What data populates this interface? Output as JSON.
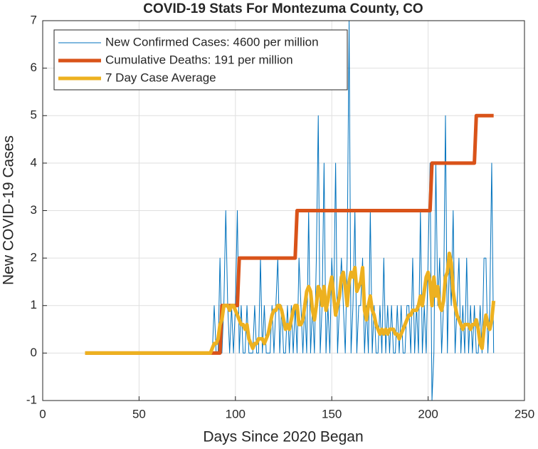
{
  "chart_data": {
    "type": "line",
    "title": "COVID-19 Stats For Montezuma County, CO",
    "xlabel": "Days Since 2020 Began",
    "ylabel": "New COVID-19 Cases",
    "xlim": [
      0,
      250
    ],
    "xticks": [
      0,
      50,
      100,
      150,
      200,
      250
    ],
    "ylim": [
      -1,
      7
    ],
    "yticks": [
      -1,
      0,
      1,
      2,
      3,
      4,
      5,
      6,
      7
    ],
    "grid": true,
    "legend": "upper-left",
    "x": [
      22,
      23,
      24,
      25,
      26,
      27,
      28,
      29,
      30,
      31,
      32,
      33,
      34,
      35,
      36,
      37,
      38,
      39,
      40,
      41,
      42,
      43,
      44,
      45,
      46,
      47,
      48,
      49,
      50,
      51,
      52,
      53,
      54,
      55,
      56,
      57,
      58,
      59,
      60,
      61,
      62,
      63,
      64,
      65,
      66,
      67,
      68,
      69,
      70,
      71,
      72,
      73,
      74,
      75,
      76,
      77,
      78,
      79,
      80,
      81,
      82,
      83,
      84,
      85,
      86,
      87,
      88,
      89,
      90,
      91,
      92,
      93,
      94,
      95,
      96,
      97,
      98,
      99,
      100,
      101,
      102,
      103,
      104,
      105,
      106,
      107,
      108,
      109,
      110,
      111,
      112,
      113,
      114,
      115,
      116,
      117,
      118,
      119,
      120,
      121,
      122,
      123,
      124,
      125,
      126,
      127,
      128,
      129,
      130,
      131,
      132,
      133,
      134,
      135,
      136,
      137,
      138,
      139,
      140,
      141,
      142,
      143,
      144,
      145,
      146,
      147,
      148,
      149,
      150,
      151,
      152,
      153,
      154,
      155,
      156,
      157,
      158,
      159,
      160,
      161,
      162,
      163,
      164,
      165,
      166,
      167,
      168,
      169,
      170,
      171,
      172,
      173,
      174,
      175,
      176,
      177,
      178,
      179,
      180,
      181,
      182,
      183,
      184,
      185,
      186,
      187,
      188,
      189,
      190,
      191,
      192,
      193,
      194,
      195,
      196,
      197,
      198,
      199,
      200,
      201,
      202,
      203,
      204,
      205,
      206,
      207,
      208,
      209,
      210,
      211,
      212,
      213,
      214,
      215,
      216,
      217,
      218,
      219,
      220,
      221,
      222,
      223,
      224,
      225,
      226,
      227,
      228,
      229,
      230,
      231,
      232,
      233,
      234
    ],
    "series": [
      {
        "name": "New Confirmed Cases: 4600 per million",
        "color": "#0072BD",
        "width": 1,
        "values": [
          0,
          0,
          0,
          0,
          0,
          0,
          0,
          0,
          0,
          0,
          0,
          0,
          0,
          0,
          0,
          0,
          0,
          0,
          0,
          0,
          0,
          0,
          0,
          0,
          0,
          0,
          0,
          0,
          0,
          0,
          0,
          0,
          0,
          0,
          0,
          0,
          0,
          0,
          0,
          0,
          0,
          0,
          0,
          0,
          0,
          0,
          0,
          0,
          0,
          0,
          0,
          0,
          0,
          0,
          0,
          0,
          0,
          0,
          0,
          0,
          0,
          0,
          0,
          0,
          0,
          0,
          0,
          1,
          0,
          0,
          2,
          0,
          1,
          3,
          1,
          0,
          1,
          0,
          1,
          3,
          0,
          1,
          0,
          0,
          1,
          0,
          0,
          0,
          1,
          0,
          0,
          2,
          0,
          1,
          0,
          0,
          0,
          1,
          0,
          1,
          2,
          0,
          1,
          0,
          0,
          1,
          0,
          1,
          0,
          1,
          0,
          2,
          1,
          0,
          1,
          0,
          3,
          0,
          1,
          0,
          2,
          5,
          0,
          1,
          4,
          0,
          1,
          0,
          2,
          1,
          4,
          0,
          1,
          2,
          1,
          0,
          2,
          7,
          0,
          1,
          3,
          0,
          1,
          1,
          2,
          0,
          1,
          0,
          3,
          0,
          1,
          0,
          0,
          1,
          0,
          2,
          0,
          1,
          0,
          1,
          0,
          0,
          1,
          0,
          1,
          0,
          0,
          1,
          1,
          0,
          2,
          0,
          1,
          0,
          3,
          0,
          1,
          0,
          2,
          4,
          -1,
          0,
          4,
          1,
          2,
          0,
          1,
          5,
          0,
          2,
          1,
          3,
          0,
          1,
          2,
          0,
          1,
          0,
          2,
          0,
          1,
          0,
          1,
          0,
          0,
          1,
          0,
          2,
          2,
          0,
          1,
          4,
          0
        ]
      },
      {
        "name": "Cumulative Deaths: 191 per million",
        "color": "#D95319",
        "width": 5,
        "values": [
          0,
          0,
          0,
          0,
          0,
          0,
          0,
          0,
          0,
          0,
          0,
          0,
          0,
          0,
          0,
          0,
          0,
          0,
          0,
          0,
          0,
          0,
          0,
          0,
          0,
          0,
          0,
          0,
          0,
          0,
          0,
          0,
          0,
          0,
          0,
          0,
          0,
          0,
          0,
          0,
          0,
          0,
          0,
          0,
          0,
          0,
          0,
          0,
          0,
          0,
          0,
          0,
          0,
          0,
          0,
          0,
          0,
          0,
          0,
          0,
          0,
          0,
          0,
          0,
          0,
          0,
          0,
          0,
          0,
          0,
          0,
          1,
          1,
          1,
          1,
          1,
          1,
          1,
          1,
          1,
          2,
          2,
          2,
          2,
          2,
          2,
          2,
          2,
          2,
          2,
          2,
          2,
          2,
          2,
          2,
          2,
          2,
          2,
          2,
          2,
          2,
          2,
          2,
          2,
          2,
          2,
          2,
          2,
          2,
          2,
          3,
          3,
          3,
          3,
          3,
          3,
          3,
          3,
          3,
          3,
          3,
          3,
          3,
          3,
          3,
          3,
          3,
          3,
          3,
          3,
          3,
          3,
          3,
          3,
          3,
          3,
          3,
          3,
          3,
          3,
          3,
          3,
          3,
          3,
          3,
          3,
          3,
          3,
          3,
          3,
          3,
          3,
          3,
          3,
          3,
          3,
          3,
          3,
          3,
          3,
          3,
          3,
          3,
          3,
          3,
          3,
          3,
          3,
          3,
          3,
          3,
          3,
          3,
          3,
          3,
          3,
          3,
          3,
          3,
          3,
          4,
          4,
          4,
          4,
          4,
          4,
          4,
          4,
          4,
          4,
          4,
          4,
          4,
          4,
          4,
          4,
          4,
          4,
          4,
          4,
          4,
          4,
          4,
          5,
          5,
          5,
          5,
          5,
          5,
          5,
          5,
          5,
          5
        ]
      },
      {
        "name": "7 Day Case Average",
        "color": "#EDB120",
        "width": 5,
        "values": [
          0,
          0,
          0,
          0,
          0,
          0,
          0,
          0,
          0,
          0,
          0,
          0,
          0,
          0,
          0,
          0,
          0,
          0,
          0,
          0,
          0,
          0,
          0,
          0,
          0,
          0,
          0,
          0,
          0,
          0,
          0,
          0,
          0,
          0,
          0,
          0,
          0,
          0,
          0,
          0,
          0,
          0,
          0,
          0,
          0,
          0,
          0,
          0,
          0,
          0,
          0,
          0,
          0,
          0,
          0,
          0,
          0,
          0,
          0,
          0,
          0,
          0,
          0,
          0,
          0,
          0,
          0.1,
          0.2,
          0.2,
          0.3,
          0.6,
          0.7,
          1,
          1,
          1,
          0.9,
          1,
          1,
          0.9,
          0.8,
          0.7,
          0.6,
          0.6,
          0.5,
          0.6,
          0.3,
          0.2,
          0.1,
          0.2,
          0.2,
          0.3,
          0.3,
          0.3,
          0.2,
          0.3,
          0.4,
          0.6,
          0.8,
          0.9,
          0.9,
          1,
          1,
          0.9,
          0.7,
          0.5,
          0.6,
          0.5,
          0.7,
          0.9,
          1,
          1,
          0.6,
          0.6,
          0.7,
          1,
          1.3,
          1.4,
          1.3,
          0.9,
          0.7,
          1,
          1.4,
          1.3,
          1,
          1.4,
          0.9,
          1.1,
          1.4,
          1.6,
          1.2,
          0.8,
          1,
          1.2,
          1.6,
          1.7,
          1.4,
          1,
          1.5,
          1.7,
          1.6,
          1.8,
          1.3,
          1.4,
          1.5,
          1.8,
          0.9,
          0.7,
          1,
          1.2,
          0.9,
          0.8,
          0.6,
          0.5,
          0.4,
          0.5,
          0.4,
          0.5,
          0.4,
          0.5,
          0.5,
          0.5,
          0.4,
          0.4,
          0.3,
          0.4,
          0.5,
          0.6,
          0.7,
          0.8,
          0.8,
          0.9,
          0.9,
          0.9,
          1,
          1.2,
          1,
          1.3,
          1.6,
          1.7,
          1.5,
          1,
          1.6,
          1.2,
          1.4,
          1,
          0.9,
          1.1,
          1.6,
          1.7,
          2.1,
          1.9,
          1.3,
          1,
          0.8,
          0.7,
          0.6,
          0.5,
          0.6,
          0.6,
          0.6,
          0.5,
          0.6,
          0.6,
          0.7,
          0.5,
          0.2,
          0.1,
          0.5,
          0.8,
          0.6,
          0.5,
          0.7,
          1.1
        ]
      }
    ]
  }
}
